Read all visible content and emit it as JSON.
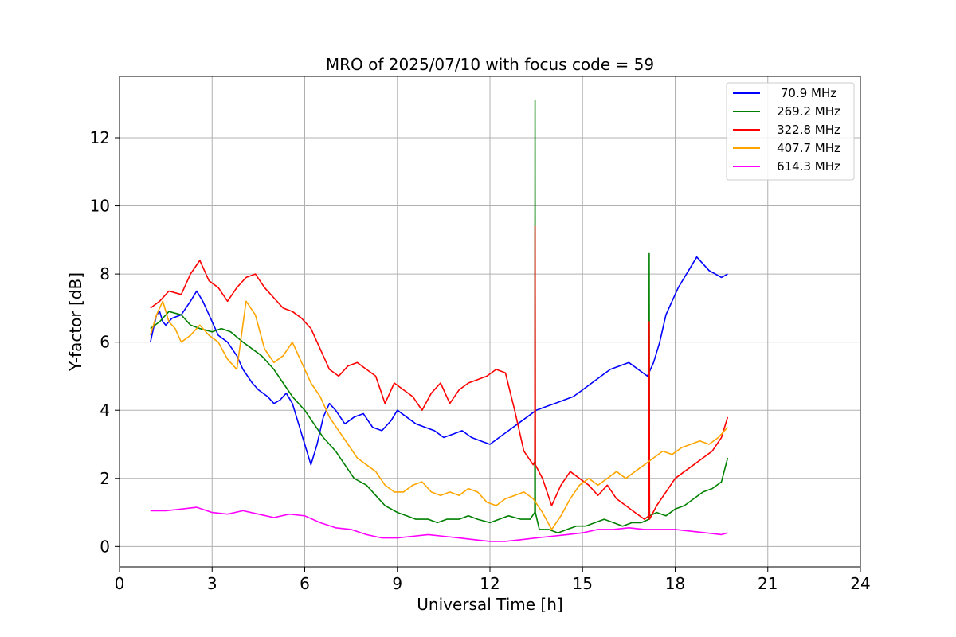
{
  "chart_data": {
    "type": "line",
    "title": "MRO of 2025/07/10 with focus code = 59",
    "xlabel": "Universal Time [h]",
    "ylabel": "Y-factor [dB]",
    "xlim": [
      0,
      24
    ],
    "ylim": [
      -0.6,
      13.8
    ],
    "xticks": [
      0,
      3,
      6,
      9,
      12,
      15,
      18,
      21,
      24
    ],
    "xtick_labels": [
      "0",
      "3",
      "6",
      "9",
      "12",
      "15",
      "18",
      "21",
      "24"
    ],
    "yticks": [
      0,
      2,
      4,
      6,
      8,
      10,
      12
    ],
    "ytick_labels": [
      "0",
      "2",
      "4",
      "6",
      "8",
      "10",
      "12"
    ],
    "grid": true,
    "legend_position": "top-right",
    "series": [
      {
        "name": " 70.9 MHz",
        "color": "#0000ff",
        "x": [
          1.0,
          1.1,
          1.2,
          1.3,
          1.4,
          1.5,
          1.7,
          2.0,
          2.3,
          2.5,
          2.7,
          2.9,
          3.2,
          3.5,
          3.8,
          4.0,
          4.3,
          4.5,
          4.8,
          5.0,
          5.2,
          5.4,
          5.6,
          5.8,
          6.0,
          6.2,
          6.4,
          6.6,
          6.8,
          7.0,
          7.3,
          7.6,
          7.9,
          8.2,
          8.5,
          8.8,
          9.0,
          9.3,
          9.6,
          9.9,
          10.2,
          10.5,
          10.8,
          11.1,
          11.4,
          11.7,
          12.0,
          12.3,
          12.6,
          12.9,
          13.2,
          13.5,
          13.8,
          14.1,
          14.4,
          14.7,
          15.0,
          15.3,
          15.6,
          15.9,
          16.2,
          16.5,
          16.8,
          17.1,
          17.3,
          17.5,
          17.7,
          17.9,
          18.1,
          18.3,
          18.5,
          18.7,
          18.9,
          19.1,
          19.3,
          19.5,
          19.7
        ],
        "y": [
          6.0,
          6.4,
          6.8,
          6.9,
          6.6,
          6.5,
          6.7,
          6.8,
          7.2,
          7.5,
          7.2,
          6.8,
          6.2,
          6.0,
          5.6,
          5.2,
          4.8,
          4.6,
          4.4,
          4.2,
          4.3,
          4.5,
          4.2,
          3.6,
          3.0,
          2.4,
          3.0,
          3.8,
          4.2,
          4.0,
          3.6,
          3.8,
          3.9,
          3.5,
          3.4,
          3.7,
          4.0,
          3.8,
          3.6,
          3.5,
          3.4,
          3.2,
          3.3,
          3.4,
          3.2,
          3.1,
          3.0,
          3.2,
          3.4,
          3.6,
          3.8,
          4.0,
          4.1,
          4.2,
          4.3,
          4.4,
          4.6,
          4.8,
          5.0,
          5.2,
          5.3,
          5.4,
          5.2,
          5.0,
          5.4,
          6.0,
          6.8,
          7.2,
          7.6,
          7.9,
          8.2,
          8.5,
          8.3,
          8.1,
          8.0,
          7.9,
          8.0
        ]
      },
      {
        "name": "269.2 MHz",
        "color": "#008000",
        "x": [
          1.0,
          1.3,
          1.6,
          2.0,
          2.3,
          2.6,
          3.0,
          3.3,
          3.6,
          4.0,
          4.3,
          4.6,
          5.0,
          5.3,
          5.6,
          6.0,
          6.3,
          6.6,
          7.0,
          7.3,
          7.6,
          8.0,
          8.3,
          8.6,
          9.0,
          9.3,
          9.6,
          10.0,
          10.3,
          10.6,
          11.0,
          11.3,
          11.6,
          12.0,
          12.3,
          12.6,
          13.0,
          13.3,
          13.45,
          13.46,
          13.47,
          13.6,
          13.9,
          14.2,
          14.5,
          14.8,
          15.1,
          15.4,
          15.7,
          16.0,
          16.3,
          16.6,
          16.9,
          17.15,
          17.16,
          17.17,
          17.4,
          17.7,
          18.0,
          18.3,
          18.6,
          18.9,
          19.2,
          19.5,
          19.7
        ],
        "y": [
          6.4,
          6.6,
          6.9,
          6.8,
          6.5,
          6.4,
          6.3,
          6.4,
          6.3,
          6.0,
          5.8,
          5.6,
          5.2,
          4.8,
          4.4,
          4.0,
          3.6,
          3.2,
          2.8,
          2.4,
          2.0,
          1.8,
          1.5,
          1.2,
          1.0,
          0.9,
          0.8,
          0.8,
          0.7,
          0.8,
          0.8,
          0.9,
          0.8,
          0.7,
          0.8,
          0.9,
          0.8,
          0.8,
          1.0,
          13.1,
          1.0,
          0.5,
          0.5,
          0.4,
          0.5,
          0.6,
          0.6,
          0.7,
          0.8,
          0.7,
          0.6,
          0.7,
          0.7,
          0.8,
          8.6,
          0.9,
          1.0,
          0.9,
          1.1,
          1.2,
          1.4,
          1.6,
          1.7,
          1.9,
          2.6
        ]
      },
      {
        "name": "322.8 MHz",
        "color": "#ff0000",
        "x": [
          1.0,
          1.3,
          1.6,
          2.0,
          2.3,
          2.6,
          2.9,
          3.2,
          3.5,
          3.8,
          4.1,
          4.4,
          4.7,
          5.0,
          5.3,
          5.6,
          5.9,
          6.2,
          6.5,
          6.8,
          7.1,
          7.4,
          7.7,
          8.0,
          8.3,
          8.6,
          8.9,
          9.2,
          9.5,
          9.8,
          10.1,
          10.4,
          10.7,
          11.0,
          11.3,
          11.6,
          11.9,
          12.2,
          12.5,
          12.8,
          13.1,
          13.4,
          13.45,
          13.46,
          13.47,
          13.7,
          14.0,
          14.3,
          14.6,
          14.9,
          15.2,
          15.5,
          15.8,
          16.1,
          16.4,
          16.7,
          17.0,
          17.15,
          17.16,
          17.17,
          17.4,
          17.7,
          18.0,
          18.3,
          18.6,
          18.9,
          19.2,
          19.5,
          19.7
        ],
        "y": [
          7.0,
          7.2,
          7.5,
          7.4,
          8.0,
          8.4,
          7.8,
          7.6,
          7.2,
          7.6,
          7.9,
          8.0,
          7.6,
          7.3,
          7.0,
          6.9,
          6.7,
          6.4,
          5.8,
          5.2,
          5.0,
          5.3,
          5.4,
          5.2,
          5.0,
          4.2,
          4.8,
          4.6,
          4.4,
          4.0,
          4.5,
          4.8,
          4.2,
          4.6,
          4.8,
          4.9,
          5.0,
          5.2,
          5.1,
          4.0,
          2.8,
          2.4,
          2.5,
          9.4,
          2.4,
          2.0,
          1.2,
          1.8,
          2.2,
          2.0,
          1.8,
          1.5,
          1.8,
          1.4,
          1.2,
          1.0,
          0.8,
          0.9,
          6.6,
          0.8,
          1.2,
          1.6,
          2.0,
          2.2,
          2.4,
          2.6,
          2.8,
          3.2,
          3.8
        ]
      },
      {
        "name": "407.7 MHz",
        "color": "#ffa500",
        "x": [
          1.0,
          1.2,
          1.4,
          1.6,
          1.8,
          2.0,
          2.3,
          2.6,
          2.9,
          3.2,
          3.5,
          3.8,
          4.1,
          4.4,
          4.7,
          5.0,
          5.3,
          5.6,
          5.9,
          6.2,
          6.5,
          6.8,
          7.1,
          7.4,
          7.7,
          8.0,
          8.3,
          8.6,
          8.9,
          9.2,
          9.5,
          9.8,
          10.1,
          10.4,
          10.7,
          11.0,
          11.3,
          11.6,
          11.9,
          12.2,
          12.5,
          12.8,
          13.1,
          13.4,
          13.7,
          14.0,
          14.3,
          14.6,
          14.9,
          15.2,
          15.5,
          15.8,
          16.1,
          16.4,
          16.7,
          17.0,
          17.3,
          17.6,
          17.9,
          18.2,
          18.5,
          18.8,
          19.1,
          19.4,
          19.7
        ],
        "y": [
          6.2,
          6.8,
          7.2,
          6.6,
          6.4,
          6.0,
          6.2,
          6.5,
          6.2,
          6.0,
          5.5,
          5.2,
          7.2,
          6.8,
          5.8,
          5.4,
          5.6,
          6.0,
          5.4,
          4.8,
          4.4,
          3.8,
          3.4,
          3.0,
          2.6,
          2.4,
          2.2,
          1.8,
          1.6,
          1.6,
          1.8,
          1.9,
          1.6,
          1.5,
          1.6,
          1.5,
          1.7,
          1.6,
          1.3,
          1.2,
          1.4,
          1.5,
          1.6,
          1.4,
          1.0,
          0.5,
          0.9,
          1.4,
          1.8,
          2.0,
          1.8,
          2.0,
          2.2,
          2.0,
          2.2,
          2.4,
          2.6,
          2.8,
          2.7,
          2.9,
          3.0,
          3.1,
          3.0,
          3.2,
          3.5
        ]
      },
      {
        "name": "614.3 MHz",
        "color": "#ff00ff",
        "x": [
          1.0,
          1.5,
          2.0,
          2.5,
          3.0,
          3.5,
          4.0,
          4.5,
          5.0,
          5.5,
          6.0,
          6.5,
          7.0,
          7.5,
          8.0,
          8.5,
          9.0,
          9.5,
          10.0,
          10.5,
          11.0,
          11.5,
          12.0,
          12.5,
          13.0,
          13.5,
          14.0,
          14.5,
          15.0,
          15.5,
          16.0,
          16.5,
          17.0,
          17.5,
          18.0,
          18.5,
          19.0,
          19.5,
          19.7
        ],
        "y": [
          1.05,
          1.05,
          1.1,
          1.15,
          1.0,
          0.95,
          1.05,
          0.95,
          0.85,
          0.95,
          0.9,
          0.7,
          0.55,
          0.5,
          0.35,
          0.25,
          0.25,
          0.3,
          0.35,
          0.3,
          0.25,
          0.2,
          0.15,
          0.15,
          0.2,
          0.25,
          0.3,
          0.35,
          0.4,
          0.5,
          0.5,
          0.55,
          0.5,
          0.5,
          0.5,
          0.45,
          0.4,
          0.35,
          0.4
        ]
      }
    ]
  }
}
